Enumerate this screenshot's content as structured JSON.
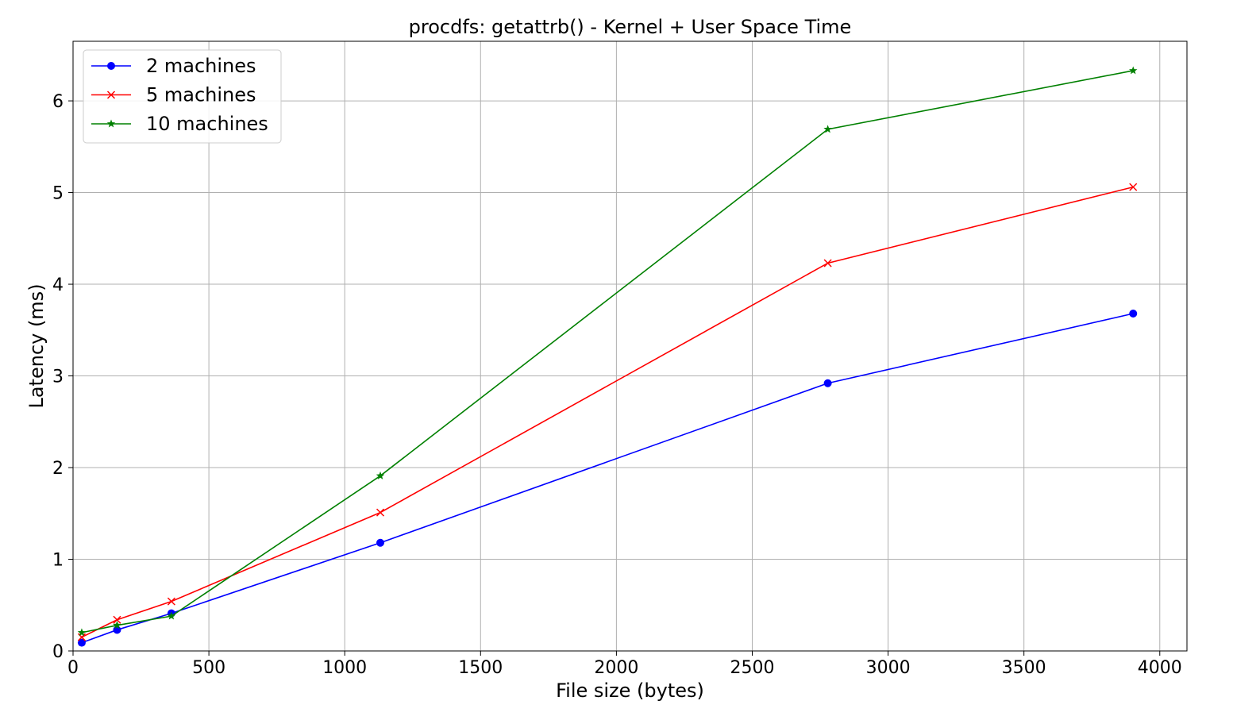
{
  "chart_data": {
    "type": "line",
    "title": "procdfs: getattrb() - Kernel + User Space Time",
    "xlabel": "File size (bytes)",
    "ylabel": "Latency (ms)",
    "xlim": [
      0,
      4100
    ],
    "ylim": [
      0,
      6.65
    ],
    "xticks": [
      0,
      500,
      1000,
      1500,
      2000,
      2500,
      3000,
      3500,
      4000
    ],
    "yticks": [
      0,
      1,
      2,
      3,
      4,
      5,
      6
    ],
    "grid": true,
    "legend_position": "top-left",
    "series": [
      {
        "name": "2 machines",
        "color": "#0000ff",
        "marker": "circle",
        "x": [
          32,
          162,
          362,
          1131,
          2778,
          3902
        ],
        "y": [
          0.09,
          0.23,
          0.41,
          1.18,
          2.92,
          3.68
        ]
      },
      {
        "name": "5 machines",
        "color": "#ff0000",
        "marker": "x",
        "x": [
          32,
          162,
          362,
          1131,
          2778,
          3902
        ],
        "y": [
          0.15,
          0.34,
          0.54,
          1.51,
          4.23,
          5.06
        ]
      },
      {
        "name": "10 machines",
        "color": "#008000",
        "marker": "star",
        "x": [
          32,
          162,
          362,
          1131,
          2778,
          3902
        ],
        "y": [
          0.2,
          0.28,
          0.38,
          1.91,
          5.69,
          6.33
        ]
      }
    ]
  }
}
